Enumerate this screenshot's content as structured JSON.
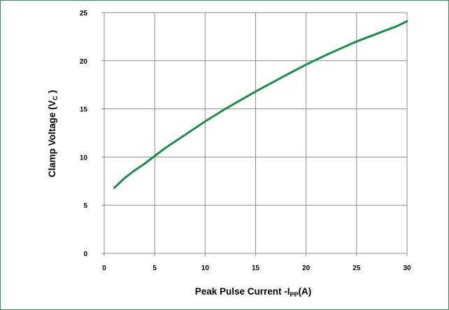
{
  "chart_data": {
    "type": "line",
    "xlabel": {
      "main": "Peak Pulse Current -I",
      "sub": "PP",
      "suffix": "(A)"
    },
    "ylabel": {
      "main": "Clamp Voltage (V",
      "sub": "C",
      "suffix": " )"
    },
    "xlim": [
      0,
      30
    ],
    "ylim": [
      0,
      25
    ],
    "x_ticks": [
      0,
      5,
      10,
      15,
      20,
      25,
      30
    ],
    "y_ticks": [
      0,
      5,
      10,
      15,
      20,
      25
    ],
    "grid": true,
    "series": [
      {
        "color": "#1f8a4c",
        "x": [
          1,
          1.5,
          2,
          3,
          4,
          5,
          6,
          7,
          8,
          10,
          12,
          15,
          18,
          20,
          22,
          25,
          27,
          29,
          30
        ],
        "y": [
          6.8,
          7.3,
          7.8,
          8.6,
          9.3,
          10.1,
          10.9,
          11.6,
          12.3,
          13.7,
          15.0,
          16.8,
          18.5,
          19.6,
          20.6,
          22.0,
          22.8,
          23.6,
          24.1
        ]
      }
    ]
  }
}
